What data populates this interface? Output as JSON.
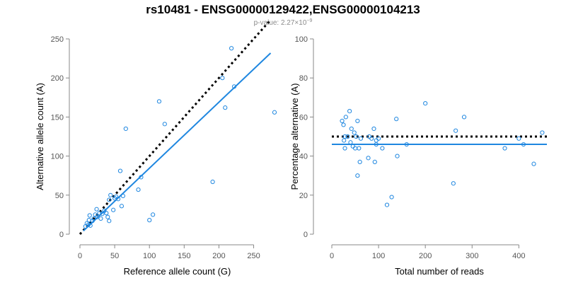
{
  "title": "rs10481 - ENSG00000129422,ENSG00000104213",
  "subtitle": {
    "prefix": "p-value: 2.27×10",
    "exponent": "−9"
  },
  "chart_data": [
    {
      "type": "scatter",
      "xlabel": "Reference allele count (G)",
      "ylabel": "Alternative allele count (A)",
      "xlim": [
        0,
        280
      ],
      "ylim": [
        0,
        250
      ],
      "xticks": [
        0,
        50,
        100,
        150,
        200,
        250
      ],
      "yticks": [
        0,
        50,
        100,
        150,
        200,
        250
      ],
      "points": [
        [
          8,
          10
        ],
        [
          10,
          14
        ],
        [
          12,
          12
        ],
        [
          13,
          18
        ],
        [
          14,
          24
        ],
        [
          15,
          11
        ],
        [
          18,
          17
        ],
        [
          20,
          20
        ],
        [
          22,
          25
        ],
        [
          24,
          32
        ],
        [
          25,
          22
        ],
        [
          28,
          27
        ],
        [
          30,
          20
        ],
        [
          32,
          26
        ],
        [
          35,
          30
        ],
        [
          38,
          27
        ],
        [
          40,
          22
        ],
        [
          42,
          17
        ],
        [
          42,
          44
        ],
        [
          44,
          50
        ],
        [
          48,
          31
        ],
        [
          50,
          46
        ],
        [
          52,
          48
        ],
        [
          55,
          45
        ],
        [
          58,
          81
        ],
        [
          60,
          36
        ],
        [
          62,
          49
        ],
        [
          66,
          135
        ],
        [
          84,
          57
        ],
        [
          88,
          73
        ],
        [
          100,
          18
        ],
        [
          105,
          25
        ],
        [
          114,
          170
        ],
        [
          122,
          141
        ],
        [
          191,
          67
        ],
        [
          205,
          200
        ],
        [
          209,
          162
        ],
        [
          218,
          238
        ],
        [
          222,
          189
        ],
        [
          280,
          156
        ]
      ],
      "fit_line": {
        "slope": 0.845,
        "intercept": 0
      },
      "reference_line": {
        "slope": 1,
        "intercept": 0
      }
    },
    {
      "type": "scatter",
      "xlabel": "Total number of reads",
      "ylabel": "Percentage alternative (A)",
      "xlim": [
        0,
        460
      ],
      "ylim": [
        0,
        100
      ],
      "xticks": [
        0,
        100,
        200,
        300,
        400
      ],
      "yticks": [
        0,
        20,
        40,
        60,
        80,
        100
      ],
      "points": [
        [
          22,
          58
        ],
        [
          25,
          56
        ],
        [
          26,
          48
        ],
        [
          28,
          50
        ],
        [
          28,
          44
        ],
        [
          30,
          60
        ],
        [
          34,
          50
        ],
        [
          38,
          63
        ],
        [
          40,
          47
        ],
        [
          42,
          54
        ],
        [
          45,
          45
        ],
        [
          48,
          52
        ],
        [
          50,
          44
        ],
        [
          52,
          50
        ],
        [
          55,
          58
        ],
        [
          55,
          30
        ],
        [
          58,
          44
        ],
        [
          60,
          37
        ],
        [
          62,
          49
        ],
        [
          78,
          39
        ],
        [
          80,
          50
        ],
        [
          85,
          49
        ],
        [
          90,
          54
        ],
        [
          92,
          37
        ],
        [
          95,
          48
        ],
        [
          95,
          46
        ],
        [
          100,
          49
        ],
        [
          108,
          44
        ],
        [
          118,
          15
        ],
        [
          128,
          19
        ],
        [
          138,
          59
        ],
        [
          140,
          40
        ],
        [
          160,
          46
        ],
        [
          200,
          67
        ],
        [
          260,
          26
        ],
        [
          265,
          53
        ],
        [
          283,
          60
        ],
        [
          370,
          44
        ],
        [
          400,
          49
        ],
        [
          410,
          46
        ],
        [
          432,
          36
        ],
        [
          450,
          52
        ]
      ],
      "mean_line": 46,
      "reference_line": 50
    }
  ]
}
